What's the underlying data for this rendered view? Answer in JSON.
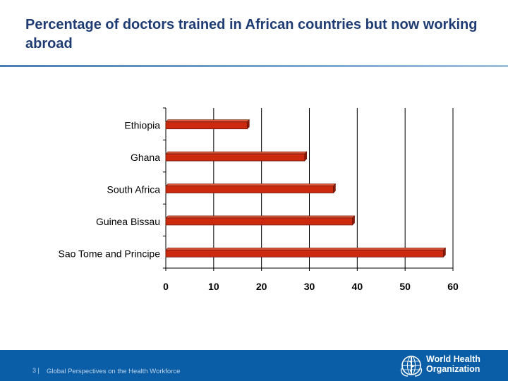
{
  "slide": {
    "title": "Percentage of doctors trained in African countries but now working abroad"
  },
  "chart_data": {
    "type": "bar",
    "orientation": "horizontal",
    "categories": [
      "Ethiopia",
      "Ghana",
      "South Africa",
      "Guinea Bissau",
      "Sao Tome and Principe"
    ],
    "values": [
      17,
      29,
      35,
      39,
      58
    ],
    "xlim": [
      0,
      60
    ],
    "xticks": [
      "0",
      "10",
      "20",
      "30",
      "40",
      "50",
      "60"
    ],
    "title": "",
    "xlabel": "",
    "ylabel": "",
    "grid": "vertical",
    "bar_color": "#cc2a0e",
    "bar_edge_color": "#6b1608",
    "legend": "none"
  },
  "footer": {
    "page_number": "3 |",
    "text": "Global Perspectives on the Health Workforce",
    "org_name_line1": "World Health",
    "org_name_line2": "Organization",
    "logo_icon": "who-emblem-icon",
    "background_color": "#0a5ea8"
  }
}
